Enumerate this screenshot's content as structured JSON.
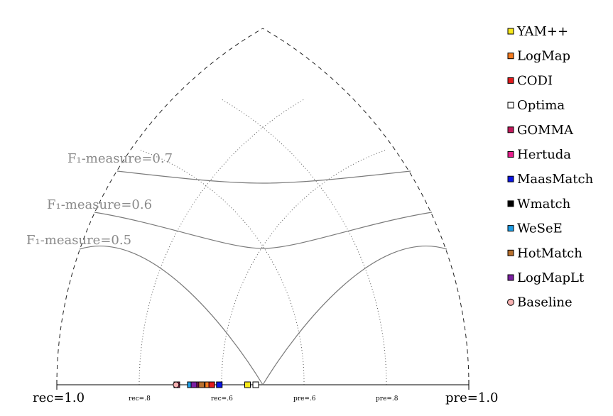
{
  "chart_data": {
    "type": "scatter",
    "axis_labels": {
      "rec_end": "rec=1.0",
      "pre_end": "pre=1.0",
      "rec_08": "rec=.8",
      "rec_06": "rec=.6",
      "pre_06": "pre=.6",
      "pre_08": "pre=.8"
    },
    "f_measure_labels": [
      "F₁-measure=0.7",
      "F₁-measure=0.6",
      "F₁-measure=0.5"
    ],
    "f_measure_values": [
      0.7,
      0.6,
      0.5
    ],
    "legend_position": "right",
    "series": [
      {
        "name": "YAM++",
        "color": "#f7e81a",
        "marker": "square",
        "precision": 0.78,
        "recall": 0.65
      },
      {
        "name": "LogMap",
        "color": "#f47a1f",
        "marker": "square",
        "precision": 0.88,
        "recall": 0.47
      },
      {
        "name": "CODI",
        "color": "#e31a1c",
        "marker": "square",
        "precision": 0.85,
        "recall": 0.48
      },
      {
        "name": "Optima",
        "color": "#ffffff",
        "marker": "square",
        "precision": 0.59,
        "recall": 0.55
      },
      {
        "name": "GOMMA",
        "color": "#c2185b",
        "marker": "square",
        "precision": 0.93,
        "recall": 0.35
      },
      {
        "name": "Hertuda",
        "color": "#e61e8c",
        "marker": "square",
        "precision": 0.8,
        "recall": 0.4
      },
      {
        "name": "MaasMatch",
        "color": "#0a14e6",
        "marker": "square",
        "precision": 0.68,
        "recall": 0.44
      },
      {
        "name": "Wmatch",
        "color": "#000000",
        "marker": "square",
        "precision": 0.8,
        "recall": 0.39
      },
      {
        "name": "WeSeE",
        "color": "#1e9ee6",
        "marker": "square",
        "precision": 0.82,
        "recall": 0.38
      },
      {
        "name": "HotMatch",
        "color": "#b8702e",
        "marker": "square",
        "precision": 0.75,
        "recall": 0.4
      },
      {
        "name": "LogMapLt",
        "color": "#7b1fa2",
        "marker": "square",
        "precision": 0.75,
        "recall": 0.37
      },
      {
        "name": "Baseline",
        "color": "#f7b2b2",
        "marker": "circle",
        "precision": 0.88,
        "recall": 0.34
      }
    ]
  }
}
